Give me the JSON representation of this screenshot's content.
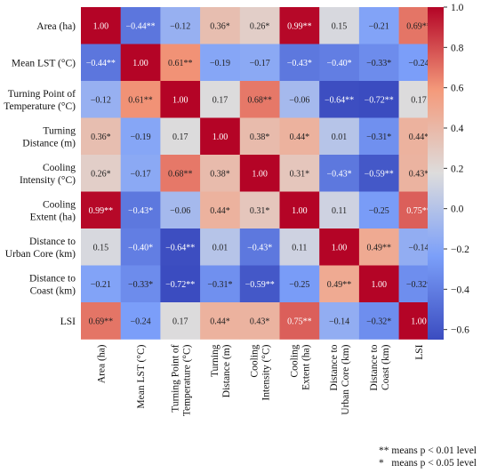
{
  "chart_data": {
    "type": "heatmap",
    "title": "",
    "xlabel": "",
    "ylabel": "",
    "rows": [
      "Area (ha)",
      "Mean LST (°C)",
      "Turning Point of Temperature (°C)",
      "Turning Distance (m)",
      "Cooling Intensity (°C)",
      "Cooling Extent (ha)",
      "Distance to Urban Core (km)",
      "Distance to Coast (km)",
      "LSI"
    ],
    "columns": [
      "Area (ha)",
      "Mean LST (°C)",
      "Turning Point of Temperature (°C)",
      "Turning Distance (m)",
      "Cooling Intensity (°C)",
      "Cooling Extent (ha)",
      "Distance to Urban Core (km)",
      "Distance to Coast (km)",
      "LSI"
    ],
    "row_label_lines": [
      [
        "Area (ha)"
      ],
      [
        "Mean LST (°C)"
      ],
      [
        "Turning Point of",
        "Temperature (°C)"
      ],
      [
        "Turning",
        "Distance (m)"
      ],
      [
        "Cooling",
        "Intensity (°C)"
      ],
      [
        "Cooling",
        "Extent (ha)"
      ],
      [
        "Distance to",
        "Urban Core (km)"
      ],
      [
        "Distance to",
        "Coast (km)"
      ],
      [
        "LSI"
      ]
    ],
    "column_label_lines": [
      [
        "Area (ha)"
      ],
      [
        "Mean LST (°C)"
      ],
      [
        "Turning Point of",
        "Temperature (°C)"
      ],
      [
        "Turning",
        "Distance (m)"
      ],
      [
        "Cooling",
        "Intensity (°C)"
      ],
      [
        "Cooling",
        "Extent (ha)"
      ],
      [
        "Distance to",
        "Urban Core (km)"
      ],
      [
        "Distance to",
        "Coast (km)"
      ],
      [
        "LSI"
      ]
    ],
    "values": [
      [
        1.0,
        -0.44,
        -0.12,
        0.36,
        0.26,
        0.99,
        0.15,
        -0.21,
        0.69
      ],
      [
        -0.44,
        1.0,
        0.61,
        -0.19,
        -0.17,
        -0.43,
        -0.4,
        -0.33,
        -0.24
      ],
      [
        -0.12,
        0.61,
        1.0,
        0.17,
        0.68,
        -0.06,
        -0.64,
        -0.72,
        0.17
      ],
      [
        0.36,
        -0.19,
        0.17,
        1.0,
        0.38,
        0.44,
        0.01,
        -0.31,
        0.44
      ],
      [
        0.26,
        -0.17,
        0.68,
        0.38,
        1.0,
        0.31,
        -0.43,
        -0.59,
        0.43
      ],
      [
        0.99,
        -0.43,
        -0.06,
        0.44,
        0.31,
        1.0,
        0.11,
        -0.25,
        0.75
      ],
      [
        0.15,
        -0.4,
        -0.64,
        0.01,
        -0.43,
        0.11,
        1.0,
        0.49,
        -0.14
      ],
      [
        -0.21,
        -0.33,
        -0.72,
        -0.31,
        -0.59,
        -0.25,
        0.49,
        1.0,
        -0.32
      ],
      [
        0.69,
        -0.24,
        0.17,
        0.44,
        0.43,
        0.75,
        -0.14,
        -0.32,
        1.0
      ]
    ],
    "labels": [
      [
        "1.00",
        "−0.44**",
        "−0.12",
        "0.36*",
        "0.26*",
        "0.99**",
        "0.15",
        "−0.21",
        "0.69**"
      ],
      [
        "−0.44**",
        "1.00",
        "0.61**",
        "−0.19",
        "−0.17",
        "−0.43*",
        "−0.40*",
        "−0.33*",
        "−0.24"
      ],
      [
        "−0.12",
        "0.61**",
        "1.00",
        "0.17",
        "0.68**",
        "−0.06",
        "−0.64**",
        "−0.72**",
        "0.17"
      ],
      [
        "0.36*",
        "−0.19",
        "0.17",
        "1.00",
        "0.38*",
        "0.44*",
        "0.01",
        "−0.31*",
        "0.44*"
      ],
      [
        "0.26*",
        "−0.17",
        "0.68**",
        "0.38*",
        "1.00",
        "0.31*",
        "−0.43*",
        "−0.59**",
        "0.43*"
      ],
      [
        "0.99**",
        "−0.43*",
        "−0.06",
        "0.44*",
        "0.31*",
        "1.00",
        "0.11",
        "−0.25",
        "0.75**"
      ],
      [
        "0.15",
        "−0.40*",
        "−0.64**",
        "0.01",
        "−0.43*",
        "0.11",
        "1.00",
        "0.49**",
        "−0.14"
      ],
      [
        "−0.21",
        "−0.33*",
        "−0.72**",
        "−0.31*",
        "−0.59**",
        "−0.25",
        "0.49**",
        "1.00",
        "−0.32*"
      ],
      [
        "0.69**",
        "−0.24",
        "0.17",
        "0.44*",
        "0.43*",
        "0.75**",
        "−0.14",
        "−0.32*",
        "1.00"
      ]
    ],
    "colorbar": {
      "range": [
        -0.65,
        1.0
      ],
      "ticks": [
        -0.6,
        -0.4,
        -0.2,
        0.0,
        0.2,
        0.4,
        0.6,
        0.8,
        1.0
      ],
      "tick_labels": [
        "−0.6",
        "−0.4",
        "−0.2",
        "0.0",
        "0.2",
        "0.4",
        "0.6",
        "0.8",
        "1.0"
      ],
      "colormap": "coolwarm"
    },
    "grid": true,
    "legend_position": "right"
  },
  "notes": {
    "double_star": "** means p < 0.01 level",
    "single_star": "*   means p < 0.05 level"
  }
}
